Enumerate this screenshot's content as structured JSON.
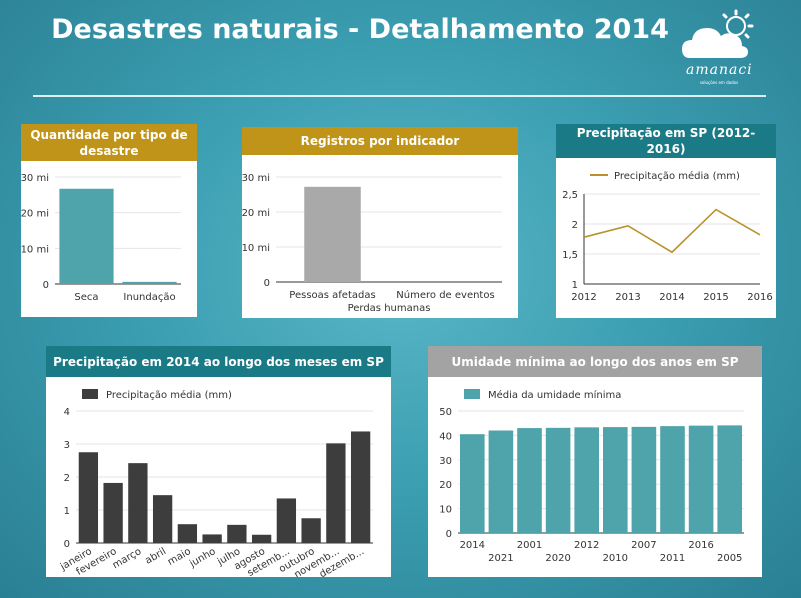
{
  "page_title": "Desastres naturais - Detalhamento 2014",
  "logo": {
    "text": "amanaci",
    "tagline": "soluções em dados"
  },
  "chart_data": [
    {
      "id": "disaster-types",
      "type": "bar",
      "title": "Quantidade por tipo de desastre",
      "header_color": "#bf9419",
      "categories": [
        "Seca",
        "Inundação"
      ],
      "series": [
        {
          "values": [
            26.7,
            0.6
          ],
          "color": "#4fa3aa"
        }
      ],
      "ylim": [
        0,
        30
      ],
      "yticks": [
        0,
        10,
        20,
        30
      ],
      "ytick_labels": [
        "0",
        "10 mi",
        "20 mi",
        "30 mi"
      ],
      "xlabel": "",
      "legend": false,
      "grid": true
    },
    {
      "id": "indicators",
      "type": "bar",
      "title": "Registros por indicador",
      "header_color": "#bf9419",
      "categories": [
        "Pessoas afetadas",
        "Número de eventos"
      ],
      "series": [
        {
          "values": [
            27.2,
            0
          ],
          "color": "#a9a9a9"
        }
      ],
      "ylim": [
        0,
        30
      ],
      "yticks": [
        0,
        10,
        20,
        30
      ],
      "ytick_labels": [
        "0",
        "10 mi",
        "20 mi",
        "30 mi"
      ],
      "xlabel": "Perdas humanas",
      "legend": false,
      "grid": true
    },
    {
      "id": "precip-sp",
      "type": "line",
      "title": "Precipitação em SP (2012-2016)",
      "header_color": "#1a7a85",
      "categories": [
        "2012",
        "2013",
        "2014",
        "2015",
        "2016"
      ],
      "series": [
        {
          "name": "Precipitação média (mm)",
          "values": [
            1.78,
            1.97,
            1.53,
            2.24,
            1.82
          ],
          "color": "#b8922a"
        }
      ],
      "ylim": [
        1,
        2.5
      ],
      "yticks": [
        1,
        1.5,
        2,
        2.5
      ],
      "ytick_labels": [
        "1",
        "1,5",
        "2",
        "2,5"
      ],
      "legend": "top-left",
      "grid": true
    },
    {
      "id": "precip-months",
      "type": "bar",
      "title": "Precipitação em 2014 ao longo dos meses em SP",
      "header_color": "#1a7a85",
      "categories": [
        "janeiro",
        "fevereiro",
        "março",
        "abril",
        "maio",
        "junho",
        "julho",
        "agosto",
        "setemb...",
        "outubro",
        "novemb...",
        "dezemb..."
      ],
      "series": [
        {
          "name": "Precipitação média (mm)",
          "values": [
            2.75,
            1.82,
            2.42,
            1.45,
            0.57,
            0.26,
            0.55,
            0.25,
            1.35,
            0.75,
            3.02,
            3.38
          ],
          "color": "#3d3d3d"
        }
      ],
      "ylim": [
        0,
        4
      ],
      "yticks": [
        0,
        1,
        2,
        3,
        4
      ],
      "ytick_labels": [
        "0",
        "1",
        "2",
        "3",
        "4"
      ],
      "legend": "top-left",
      "grid": true
    },
    {
      "id": "humidity",
      "type": "bar",
      "title": "Umidade mínima ao longo dos anos em SP",
      "header_color": "#a3a3a3",
      "categories": [
        "2014",
        "2021",
        "2001",
        "2020",
        "2012",
        "2010",
        "2007",
        "2011",
        "2016",
        "2005"
      ],
      "series": [
        {
          "name": "Média da umidade mínima",
          "values": [
            40.5,
            42.0,
            43.0,
            43.1,
            43.3,
            43.4,
            43.5,
            43.8,
            44.0,
            44.1
          ],
          "color": "#4fa3aa"
        }
      ],
      "ylim": [
        0,
        50
      ],
      "yticks": [
        0,
        10,
        20,
        30,
        40,
        50
      ],
      "ytick_labels": [
        "0",
        "10",
        "20",
        "30",
        "40",
        "50"
      ],
      "legend": "top-left",
      "grid": true
    }
  ]
}
